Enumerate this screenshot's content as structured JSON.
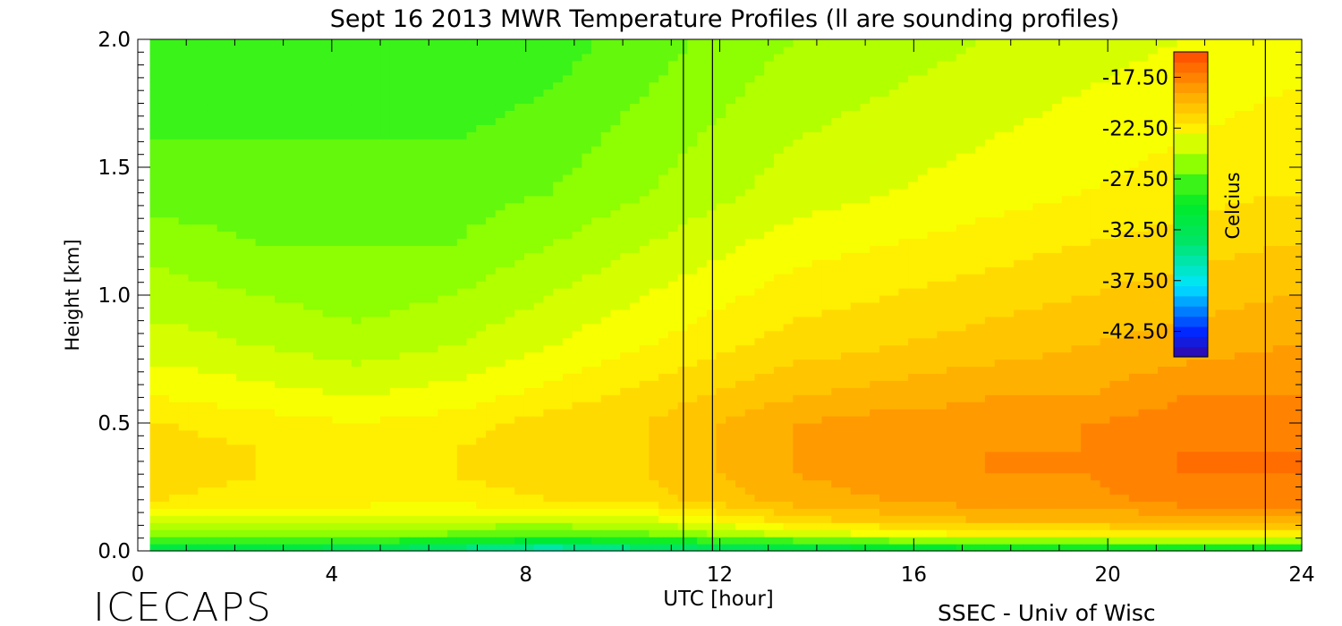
{
  "chart_data": {
    "type": "heatmap",
    "title": "Sept 16 2013 MWR Temperature Profiles (ll are sounding profiles)",
    "xlabel": "UTC [hour]",
    "ylabel": "Height [km]",
    "xlim": [
      0,
      24
    ],
    "ylim": [
      0,
      2.0
    ],
    "x_ticks": [
      "0",
      "4",
      "8",
      "12",
      "16",
      "20",
      "24"
    ],
    "y_ticks": [
      "0.0",
      "0.5",
      "1.0",
      "1.5",
      "2.0"
    ],
    "colorbar": {
      "label": "Celcius",
      "range": [
        -45.0,
        -15.0
      ],
      "ticks": [
        "-17.50",
        "-22.50",
        "-27.50",
        "-32.50",
        "-37.50",
        "-42.50"
      ],
      "tick_values": [
        -17.5,
        -22.5,
        -27.5,
        -32.5,
        -37.5,
        -42.5
      ]
    },
    "sounding_times": [
      11.25,
      11.85,
      23.25
    ],
    "heights_km": [
      0.0,
      0.03,
      0.07,
      0.12,
      0.2,
      0.3,
      0.4,
      0.5,
      0.6,
      0.8,
      1.0,
      1.2,
      1.4,
      1.6,
      1.8,
      2.0
    ],
    "times_hr": [
      0.5,
      2.5,
      4.5,
      6.5,
      8.5,
      10.5,
      13.5,
      15.5,
      17.5,
      19.5,
      21.5,
      23.6
    ],
    "profiles": [
      [
        -33,
        -29,
        -26,
        -24,
        -21.5,
        -21,
        -21,
        -21.5,
        -22.5,
        -24,
        -25,
        -26,
        -27,
        -27.5,
        -28,
        -28.5
      ],
      [
        -33,
        -29,
        -26,
        -24,
        -22,
        -21.5,
        -21.5,
        -22,
        -23,
        -24.5,
        -25.5,
        -26.5,
        -27,
        -27.5,
        -28,
        -28.5
      ],
      [
        -34,
        -29,
        -26,
        -24,
        -22,
        -22,
        -22,
        -22.5,
        -23.5,
        -25,
        -26,
        -26.5,
        -27,
        -27.5,
        -28,
        -28.5
      ],
      [
        -36,
        -30,
        -26.5,
        -24.5,
        -22,
        -21.5,
        -21.5,
        -22,
        -23,
        -24.5,
        -25.5,
        -26.5,
        -27,
        -27.5,
        -28,
        -28.5
      ],
      [
        -38,
        -31,
        -27,
        -24.5,
        -21.5,
        -21,
        -21,
        -21,
        -22,
        -23.5,
        -24.5,
        -25.5,
        -26.5,
        -27,
        -27.5,
        -28
      ],
      [
        -36,
        -30,
        -26.5,
        -24,
        -21,
        -20.5,
        -20.5,
        -20.5,
        -21,
        -22.5,
        -23.5,
        -24.5,
        -25.5,
        -26,
        -26.5,
        -27
      ],
      [
        -33,
        -29,
        -24,
        -21,
        -19,
        -18.5,
        -18.5,
        -18.5,
        -19.5,
        -21,
        -22,
        -23,
        -24,
        -24.5,
        -25,
        -25.5
      ],
      [
        -32,
        -28,
        -23,
        -20,
        -18.5,
        -18,
        -18,
        -18,
        -19,
        -20.5,
        -21.5,
        -22.5,
        -23.5,
        -24,
        -24.5,
        -25
      ],
      [
        -31,
        -27,
        -22,
        -19.5,
        -18,
        -17.5,
        -17.5,
        -18,
        -18.5,
        -20,
        -21,
        -22,
        -23,
        -23.5,
        -24,
        -24.5
      ],
      [
        -31,
        -27,
        -22,
        -19.5,
        -18,
        -17.5,
        -17.5,
        -17.5,
        -18.5,
        -19.5,
        -20.5,
        -21.5,
        -22.5,
        -23,
        -23.5,
        -24
      ],
      [
        -31,
        -27,
        -21.5,
        -19,
        -17,
        -16.5,
        -16.5,
        -17,
        -17.5,
        -19,
        -20,
        -21,
        -22,
        -22.5,
        -23,
        -23.5
      ],
      [
        -30,
        -27,
        -21.5,
        -19,
        -17,
        -16.5,
        -16.5,
        -17,
        -17.5,
        -18.5,
        -19.5,
        -20.5,
        -21.5,
        -22,
        -22.5,
        -23
      ]
    ]
  },
  "footer": {
    "left_logo": "ICECAPS",
    "right_credit": "SSEC - Univ of Wisc"
  }
}
